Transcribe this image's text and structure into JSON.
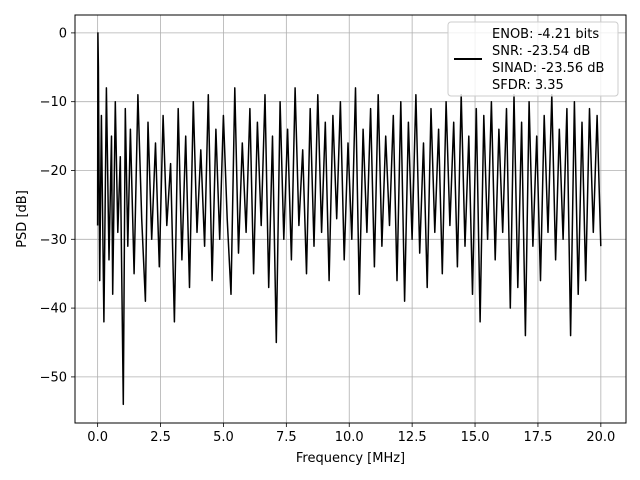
{
  "chart_data": {
    "type": "line",
    "title": "",
    "xlabel": "Frequency [MHz]",
    "ylabel": "PSD [dB]",
    "xlim": [
      -0.9,
      21.0
    ],
    "ylim": [
      -56.7,
      2.6
    ],
    "xticks": [
      0.0,
      2.5,
      5.0,
      7.5,
      10.0,
      12.5,
      15.0,
      17.5,
      20.0
    ],
    "xtick_labels": [
      "0.0",
      "2.5",
      "5.0",
      "7.5",
      "10.0",
      "12.5",
      "15.0",
      "17.5",
      "20.0"
    ],
    "yticks": [
      0,
      -10,
      -20,
      -30,
      -40,
      -50
    ],
    "ytick_labels": [
      "0",
      "−10",
      "−20",
      "−30",
      "−40",
      "−50"
    ],
    "grid": true,
    "legend": {
      "placement": "top-right",
      "lines": [
        "ENOB: -4.21 bits",
        "SNR: -23.54 dB",
        "SINAD: -23.56 dB",
        "SFDR: 3.35"
      ]
    },
    "series": [
      {
        "color": "#000000",
        "x": [
          0.0,
          0.01,
          0.03,
          0.08,
          0.15,
          0.25,
          0.35,
          0.45,
          0.55,
          0.6,
          0.7,
          0.8,
          0.9,
          1.02,
          1.1,
          1.2,
          1.3,
          1.45,
          1.6,
          1.75,
          1.9,
          2.0,
          2.15,
          2.3,
          2.45,
          2.6,
          2.75,
          2.9,
          3.05,
          3.2,
          3.35,
          3.5,
          3.65,
          3.8,
          3.95,
          4.1,
          4.25,
          4.4,
          4.55,
          4.7,
          4.85,
          5.0,
          5.15,
          5.3,
          5.45,
          5.6,
          5.75,
          5.9,
          6.05,
          6.2,
          6.35,
          6.5,
          6.65,
          6.8,
          6.95,
          7.1,
          7.25,
          7.4,
          7.55,
          7.7,
          7.85,
          8.0,
          8.15,
          8.3,
          8.45,
          8.6,
          8.75,
          8.9,
          9.05,
          9.2,
          9.35,
          9.5,
          9.65,
          9.8,
          9.95,
          10.1,
          10.25,
          10.4,
          10.55,
          10.7,
          10.85,
          11.0,
          11.15,
          11.3,
          11.45,
          11.6,
          11.75,
          11.9,
          12.05,
          12.2,
          12.35,
          12.5,
          12.65,
          12.8,
          12.95,
          13.1,
          13.25,
          13.4,
          13.55,
          13.7,
          13.85,
          14.0,
          14.15,
          14.3,
          14.45,
          14.6,
          14.75,
          14.9,
          15.05,
          15.2,
          15.35,
          15.5,
          15.65,
          15.8,
          15.95,
          16.1,
          16.25,
          16.4,
          16.55,
          16.7,
          16.85,
          17.0,
          17.15,
          17.3,
          17.45,
          17.6,
          17.75,
          17.9,
          18.05,
          18.2,
          18.35,
          18.5,
          18.65,
          18.8,
          18.95,
          19.1,
          19.25,
          19.4,
          19.55,
          19.7,
          19.85,
          20.0
        ],
        "y": [
          -28,
          0,
          -5,
          -36,
          -12,
          -42,
          -8,
          -33,
          -15,
          -38,
          -10,
          -29,
          -18,
          -54,
          -11,
          -31,
          -14,
          -35,
          -9,
          -27,
          -39,
          -13,
          -30,
          -16,
          -34,
          -12,
          -28,
          -19,
          -42,
          -11,
          -33,
          -15,
          -37,
          -10,
          -29,
          -17,
          -31,
          -9,
          -36,
          -14,
          -30,
          -12,
          -27,
          -38,
          -8,
          -32,
          -16,
          -29,
          -11,
          -35,
          -13,
          -28,
          -9,
          -37,
          -15,
          -45,
          -10,
          -30,
          -14,
          -33,
          -8,
          -28,
          -17,
          -35,
          -11,
          -31,
          -9,
          -29,
          -13,
          -36,
          -12,
          -27,
          -10,
          -33,
          -16,
          -30,
          -8,
          -38,
          -14,
          -29,
          -11,
          -34,
          -9,
          -31,
          -15,
          -28,
          -12,
          -36,
          -10,
          -39,
          -13,
          -30,
          -9,
          -32,
          -16,
          -37,
          -11,
          -29,
          -14,
          -35,
          -10,
          -28,
          -13,
          -34,
          -9,
          -31,
          -15,
          -38,
          -11,
          -42,
          -12,
          -30,
          -10,
          -33,
          -14,
          -29,
          -11,
          -40,
          -9,
          -37,
          -13,
          -44,
          -10,
          -31,
          -15,
          -36,
          -12,
          -29,
          -9,
          -33,
          -14,
          -30,
          -11,
          -44,
          -10,
          -38,
          -13,
          -36,
          -11,
          -29,
          -12,
          -31
        ]
      }
    ]
  }
}
